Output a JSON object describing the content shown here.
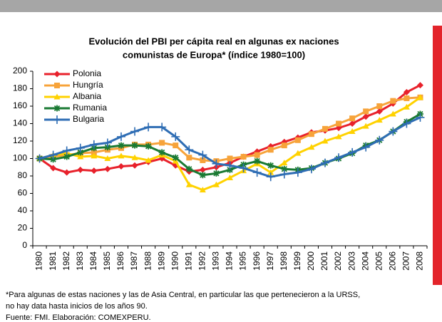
{
  "chart_data": {
    "type": "line",
    "title": [
      "Evolución del PBI per cápita real en algunas ex naciones",
      "comunistas de Europa* (índice 1980=100)"
    ],
    "categories": [
      "1980",
      "1981",
      "1982",
      "1983",
      "1984",
      "1985",
      "1986",
      "1987",
      "1988",
      "1989",
      "1990",
      "1991",
      "1992",
      "1993",
      "1994",
      "1995",
      "1996",
      "1997",
      "1998",
      "1999",
      "2000",
      "2001",
      "2002",
      "2003",
      "2004",
      "2005",
      "2006",
      "2007",
      "2008"
    ],
    "series": [
      {
        "name": "Polonia",
        "color": "#e8212b",
        "marker": "diamond",
        "values": [
          100,
          89,
          84,
          87,
          86,
          88,
          91,
          92,
          96,
          100,
          92,
          85,
          87,
          90,
          95,
          102,
          108,
          114,
          119,
          124,
          130,
          132,
          135,
          140,
          148,
          154,
          163,
          176,
          184
        ]
      },
      {
        "name": "Hungría",
        "color": "#f7a33a",
        "marker": "square",
        "values": [
          100,
          102,
          104,
          106,
          107,
          110,
          112,
          116,
          116,
          118,
          115,
          101,
          98,
          97,
          100,
          102,
          104,
          110,
          115,
          121,
          128,
          134,
          140,
          146,
          154,
          160,
          166,
          169,
          170
        ]
      },
      {
        "name": "Albania",
        "color": "#ffd200",
        "marker": "triangle",
        "values": [
          100,
          104,
          106,
          102,
          103,
          100,
          103,
          101,
          98,
          104,
          97,
          70,
          64,
          70,
          78,
          86,
          94,
          84,
          95,
          106,
          113,
          120,
          125,
          131,
          137,
          144,
          151,
          159,
          170
        ]
      },
      {
        "name": "Rumania",
        "color": "#1a7a33",
        "marker": "star",
        "values": [
          100,
          99,
          102,
          107,
          112,
          113,
          115,
          115,
          114,
          107,
          101,
          88,
          81,
          83,
          87,
          93,
          97,
          92,
          88,
          87,
          89,
          95,
          100,
          106,
          115,
          121,
          131,
          142,
          151
        ]
      },
      {
        "name": "Bulgaria",
        "color": "#2e6db4",
        "marker": "plus",
        "values": [
          100,
          104,
          109,
          112,
          116,
          118,
          125,
          131,
          136,
          136,
          125,
          110,
          104,
          94,
          92,
          89,
          84,
          79,
          82,
          84,
          88,
          95,
          101,
          107,
          113,
          121,
          131,
          140,
          147
        ]
      }
    ],
    "ylim": [
      0,
      200
    ],
    "yticks": [
      0,
      20,
      40,
      60,
      80,
      100,
      120,
      140,
      160,
      180,
      200
    ],
    "grid": false,
    "legend": "upper left",
    "footnote": [
      "*Para algunas de estas naciones y las de Asia Central, en particular las que pertenecieron a la URSS,",
      "no hay data hasta inicios de los años 90.",
      "Fuente: FMI. Elaboración: COMEXPERU."
    ]
  }
}
